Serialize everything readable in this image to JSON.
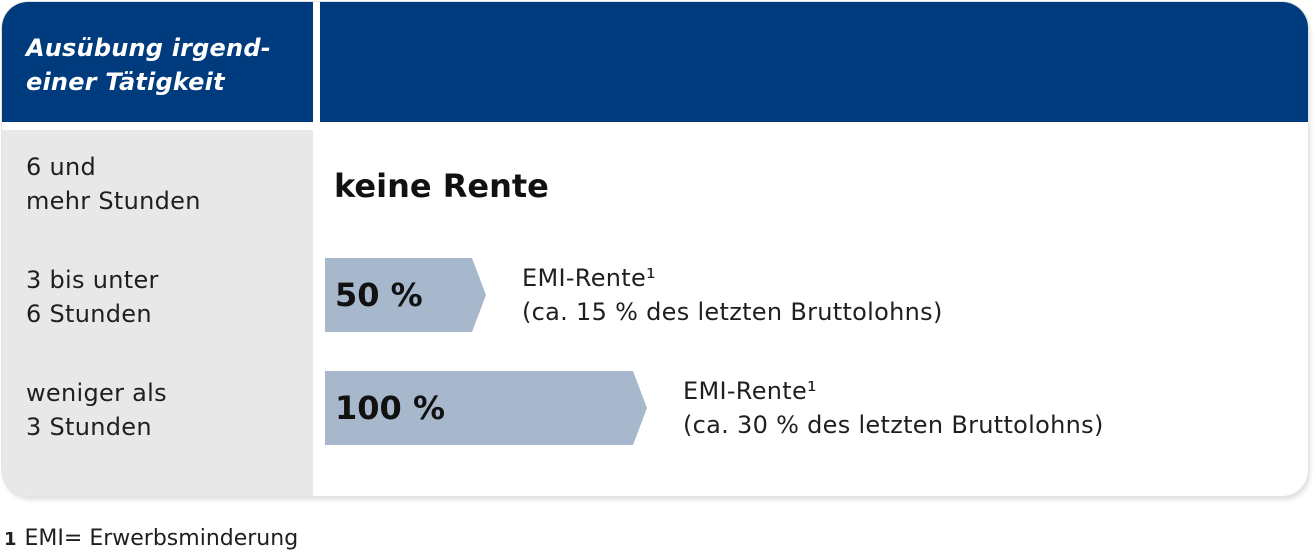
{
  "header": {
    "title_line1": "Ausübung irgend-",
    "title_line2": "einer Tätigkeit"
  },
  "rows": [
    {
      "label_line1": "6 und",
      "label_line2": "mehr Stunden"
    },
    {
      "label_line1": "3 bis unter",
      "label_line2": "6 Stunden"
    },
    {
      "label_line1": "weniger als",
      "label_line2": "3 Stunden"
    }
  ],
  "no_pension": "keine Rente",
  "pensions": [
    {
      "percent": "50 %",
      "fraction": 0.5,
      "title": "EMI-Rente¹",
      "detail": "(ca. 15 % des letzten Bruttolohns)"
    },
    {
      "percent": "100 %",
      "fraction": 1.0,
      "title": "EMI-Rente¹",
      "detail": "(ca. 30 % des letzten Bruttolohns)"
    }
  ],
  "colors": {
    "header": "#003c7d",
    "arrow": "#a8b8cc",
    "sidebar": "#e8e8e8"
  },
  "footnote": {
    "number": "1",
    "text": "EMI= Erwerbsminderung"
  }
}
